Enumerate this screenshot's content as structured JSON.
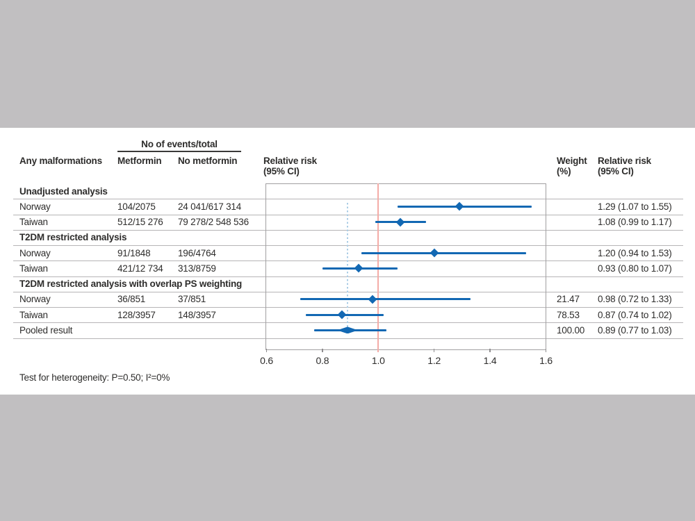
{
  "colors": {
    "background_gray": "#c1bfc1",
    "panel_white": "#ffffff",
    "forest_blue": "#1268b3",
    "reference_red": "#f4aca7",
    "pooled_dash_blue": "#abcde6",
    "grid_gray": "#b6b4b6",
    "text": "#2d2c2b"
  },
  "header": {
    "events_total": "No of events/total",
    "outcome": "Any malformations",
    "metformin": "Metformin",
    "no_metformin": "No metformin",
    "plot_line1": "Relative risk",
    "plot_line2": "(95% CI)",
    "weight_line1": "Weight",
    "weight_line2": "(%)",
    "rr_line1": "Relative risk",
    "rr_line2": "(95% CI)"
  },
  "rows": [
    {
      "type": "section",
      "label": "Unadjusted analysis"
    },
    {
      "type": "study",
      "label": "Norway",
      "metformin": "104/2075",
      "no_metformin": "24 041/617 314",
      "rr_text": "1.29 (1.07 to 1.55)",
      "est": 1.29,
      "lo": 1.07,
      "hi": 1.55
    },
    {
      "type": "study",
      "label": "Taiwan",
      "metformin": "512/15 276",
      "no_metformin": "79 278/2 548 536",
      "rr_text": "1.08 (0.99 to 1.17)",
      "est": 1.08,
      "lo": 0.99,
      "hi": 1.17
    },
    {
      "type": "section",
      "label": "T2DM restricted analysis"
    },
    {
      "type": "study",
      "label": "Norway",
      "metformin": "91/1848",
      "no_metformin": "196/4764",
      "rr_text": "1.20 (0.94 to 1.53)",
      "est": 1.2,
      "lo": 0.94,
      "hi": 1.53
    },
    {
      "type": "study",
      "label": "Taiwan",
      "metformin": "421/12 734",
      "no_metformin": "313/8759",
      "rr_text": "0.93 (0.80 to 1.07)",
      "est": 0.93,
      "lo": 0.8,
      "hi": 1.07
    },
    {
      "type": "section",
      "label": "T2DM restricted analysis with overlap PS weighting"
    },
    {
      "type": "study",
      "label": "Norway",
      "metformin": "36/851",
      "no_metformin": "37/851",
      "weight": "21.47",
      "rr_text": "0.98 (0.72 to 1.33)",
      "est": 0.98,
      "lo": 0.72,
      "hi": 1.33
    },
    {
      "type": "study",
      "label": "Taiwan",
      "metformin": "128/3957",
      "no_metformin": "148/3957",
      "weight": "78.53",
      "rr_text": "0.87 (0.74 to 1.02)",
      "est": 0.87,
      "lo": 0.74,
      "hi": 1.02
    },
    {
      "type": "pooled",
      "label": "Pooled result",
      "weight": "100.00",
      "rr_text": "0.89 (0.77 to 1.03)",
      "est": 0.89,
      "lo": 0.77,
      "hi": 1.03
    }
  ],
  "footnote": "Test for heterogeneity: P=0.50; I²=0%",
  "chart_data": {
    "type": "scatter",
    "subtype": "forest-plot",
    "title": "Any malformations",
    "xlabel": "Relative risk (95% CI)",
    "x_axis": {
      "range": [
        0.6,
        1.6
      ],
      "ticks": [
        0.6,
        0.8,
        1.0,
        1.2,
        1.4,
        1.6
      ],
      "scale": "linear"
    },
    "tick_labels": [
      "0.6",
      "0.8",
      "1.0",
      "1.2",
      "1.4",
      "1.6"
    ],
    "reference_line_x": 1.0,
    "pooled_dashed_line_x": 0.89,
    "groups": [
      {
        "name": "Unadjusted analysis",
        "studies": [
          {
            "study": "Norway",
            "events_metformin": "104/2075",
            "events_no_metformin": "24 041/617 314",
            "rr": 1.29,
            "ci_low": 1.07,
            "ci_high": 1.55
          },
          {
            "study": "Taiwan",
            "events_metformin": "512/15 276",
            "events_no_metformin": "79 278/2 548 536",
            "rr": 1.08,
            "ci_low": 0.99,
            "ci_high": 1.17
          }
        ]
      },
      {
        "name": "T2DM restricted analysis",
        "studies": [
          {
            "study": "Norway",
            "events_metformin": "91/1848",
            "events_no_metformin": "196/4764",
            "rr": 1.2,
            "ci_low": 0.94,
            "ci_high": 1.53
          },
          {
            "study": "Taiwan",
            "events_metformin": "421/12 734",
            "events_no_metformin": "313/8759",
            "rr": 0.93,
            "ci_low": 0.8,
            "ci_high": 1.07
          }
        ]
      },
      {
        "name": "T2DM restricted analysis with overlap PS weighting",
        "studies": [
          {
            "study": "Norway",
            "events_metformin": "36/851",
            "events_no_metformin": "37/851",
            "weight_pct": 21.47,
            "rr": 0.98,
            "ci_low": 0.72,
            "ci_high": 1.33
          },
          {
            "study": "Taiwan",
            "events_metformin": "128/3957",
            "events_no_metformin": "148/3957",
            "weight_pct": 78.53,
            "rr": 0.87,
            "ci_low": 0.74,
            "ci_high": 1.02
          }
        ]
      }
    ],
    "pooled": {
      "label": "Pooled result",
      "weight_pct": 100.0,
      "rr": 0.89,
      "ci_low": 0.77,
      "ci_high": 1.03
    },
    "heterogeneity": "Test for heterogeneity: P=0.50; I²=0%",
    "legend": "none",
    "grid": "horizontal-row-lines"
  }
}
